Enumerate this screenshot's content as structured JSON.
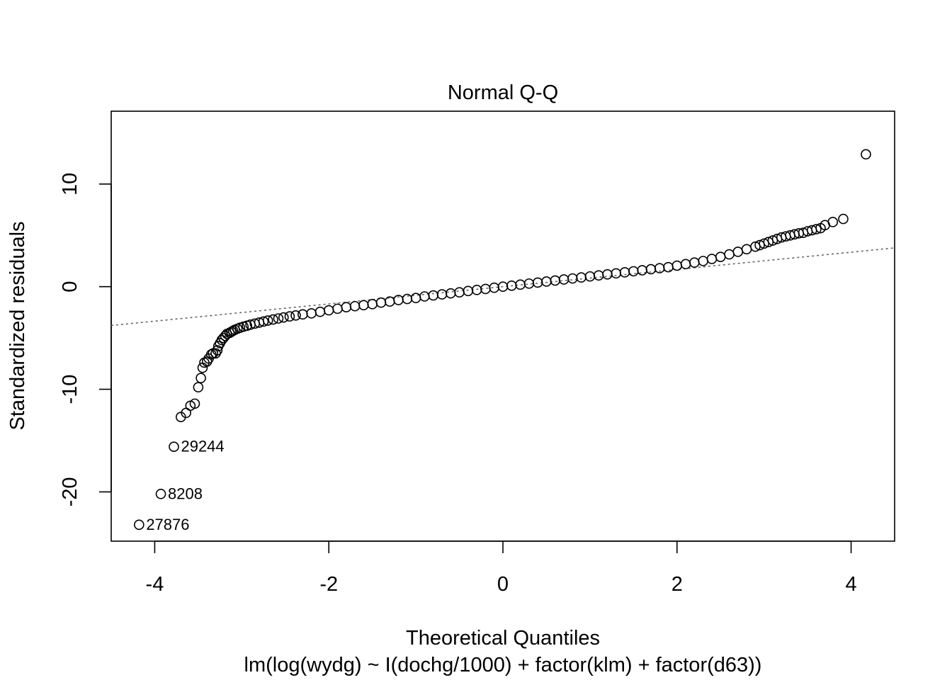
{
  "chart_data": {
    "type": "scatter",
    "title": "Normal Q-Q",
    "xlabel": "Theoretical Quantiles",
    "ylabel": "Standardized residuals",
    "subtitle": "lm(log(wydg) ~ I(dochg/1000) + factor(klm) + factor(d63))",
    "xlim": [
      -4.5,
      4.5
    ],
    "ylim": [
      -24.8,
      17.1
    ],
    "x_ticks": [
      -4,
      -2,
      0,
      2,
      4
    ],
    "x_tick_labels": [
      "-4",
      "-2",
      "0",
      "2",
      "4"
    ],
    "y_ticks": [
      -20,
      -10,
      0,
      10
    ],
    "y_tick_labels": [
      "-20",
      "-10",
      "0",
      "10"
    ],
    "grid": false,
    "reference_line": {
      "style": "dotted",
      "color": "#666666",
      "points": [
        [
          -4.5,
          -3.78
        ],
        [
          4.5,
          3.78
        ]
      ]
    },
    "series": [
      {
        "marker": "open-circle",
        "points": [
          [
            -4.18,
            -23.2
          ],
          [
            -3.93,
            -20.2
          ],
          [
            -3.78,
            -15.6
          ],
          [
            -3.7,
            -12.7
          ],
          [
            -3.64,
            -12.3
          ],
          [
            -3.59,
            -11.6
          ],
          [
            -3.54,
            -11.4
          ],
          [
            -3.5,
            -9.8
          ],
          [
            -3.47,
            -8.9
          ],
          [
            -3.45,
            -7.9
          ],
          [
            -3.43,
            -7.4
          ],
          [
            -3.4,
            -7.3
          ],
          [
            -3.38,
            -7.0
          ],
          [
            -3.35,
            -6.6
          ],
          [
            -3.33,
            -6.5
          ],
          [
            -3.3,
            -6.5
          ],
          [
            -3.28,
            -6.2
          ],
          [
            -3.27,
            -5.8
          ],
          [
            -3.25,
            -5.5
          ],
          [
            -3.23,
            -5.2
          ],
          [
            -3.21,
            -5.0
          ],
          [
            -3.19,
            -4.8
          ],
          [
            -3.17,
            -4.6
          ],
          [
            -3.14,
            -4.5
          ],
          [
            -3.12,
            -4.4
          ],
          [
            -3.1,
            -4.3
          ],
          [
            -3.08,
            -4.2
          ],
          [
            -3.05,
            -4.1
          ],
          [
            -3.02,
            -4.0
          ],
          [
            -2.98,
            -3.9
          ],
          [
            -2.94,
            -3.8
          ],
          [
            -2.9,
            -3.7
          ],
          [
            -2.85,
            -3.6
          ],
          [
            -2.8,
            -3.5
          ],
          [
            -2.75,
            -3.4
          ],
          [
            -2.7,
            -3.3
          ],
          [
            -2.64,
            -3.2
          ],
          [
            -2.58,
            -3.1
          ],
          [
            -2.52,
            -3.0
          ],
          [
            -2.45,
            -2.9
          ],
          [
            -2.38,
            -2.8
          ],
          [
            -2.3,
            -2.7
          ],
          [
            -2.2,
            -2.6
          ],
          [
            -2.1,
            -2.45
          ],
          [
            -2.0,
            -2.3
          ],
          [
            -1.9,
            -2.15
          ],
          [
            -1.8,
            -2.0
          ],
          [
            -1.7,
            -1.9
          ],
          [
            -1.6,
            -1.8
          ],
          [
            -1.5,
            -1.7
          ],
          [
            -1.4,
            -1.55
          ],
          [
            -1.3,
            -1.45
          ],
          [
            -1.2,
            -1.3
          ],
          [
            -1.1,
            -1.2
          ],
          [
            -1.0,
            -1.1
          ],
          [
            -0.9,
            -0.95
          ],
          [
            -0.8,
            -0.85
          ],
          [
            -0.7,
            -0.75
          ],
          [
            -0.6,
            -0.65
          ],
          [
            -0.5,
            -0.55
          ],
          [
            -0.4,
            -0.42
          ],
          [
            -0.3,
            -0.32
          ],
          [
            -0.2,
            -0.22
          ],
          [
            -0.1,
            -0.1
          ],
          [
            0.0,
            0.0
          ],
          [
            0.1,
            0.1
          ],
          [
            0.2,
            0.2
          ],
          [
            0.3,
            0.3
          ],
          [
            0.4,
            0.4
          ],
          [
            0.5,
            0.5
          ],
          [
            0.6,
            0.6
          ],
          [
            0.7,
            0.7
          ],
          [
            0.8,
            0.8
          ],
          [
            0.9,
            0.9
          ],
          [
            1.0,
            1.0
          ],
          [
            1.1,
            1.1
          ],
          [
            1.2,
            1.2
          ],
          [
            1.3,
            1.3
          ],
          [
            1.4,
            1.4
          ],
          [
            1.5,
            1.5
          ],
          [
            1.6,
            1.6
          ],
          [
            1.7,
            1.7
          ],
          [
            1.8,
            1.8
          ],
          [
            1.9,
            1.9
          ],
          [
            2.0,
            2.05
          ],
          [
            2.1,
            2.2
          ],
          [
            2.2,
            2.35
          ],
          [
            2.3,
            2.5
          ],
          [
            2.4,
            2.7
          ],
          [
            2.5,
            2.9
          ],
          [
            2.6,
            3.15
          ],
          [
            2.7,
            3.4
          ],
          [
            2.8,
            3.65
          ],
          [
            2.9,
            3.9
          ],
          [
            2.95,
            4.05
          ],
          [
            3.0,
            4.2
          ],
          [
            3.05,
            4.35
          ],
          [
            3.1,
            4.5
          ],
          [
            3.15,
            4.65
          ],
          [
            3.2,
            4.8
          ],
          [
            3.25,
            4.9
          ],
          [
            3.3,
            5.0
          ],
          [
            3.35,
            5.1
          ],
          [
            3.4,
            5.2
          ],
          [
            3.45,
            5.25
          ],
          [
            3.5,
            5.4
          ],
          [
            3.55,
            5.5
          ],
          [
            3.6,
            5.6
          ],
          [
            3.65,
            5.7
          ],
          [
            3.7,
            6.0
          ],
          [
            3.79,
            6.3
          ],
          [
            3.91,
            6.6
          ],
          [
            4.17,
            12.9
          ]
        ]
      }
    ],
    "point_labels": [
      {
        "x": -4.18,
        "y": -23.2,
        "text": "27876"
      },
      {
        "x": -3.93,
        "y": -20.2,
        "text": "8208"
      },
      {
        "x": -3.78,
        "y": -15.6,
        "text": "29244"
      }
    ]
  }
}
